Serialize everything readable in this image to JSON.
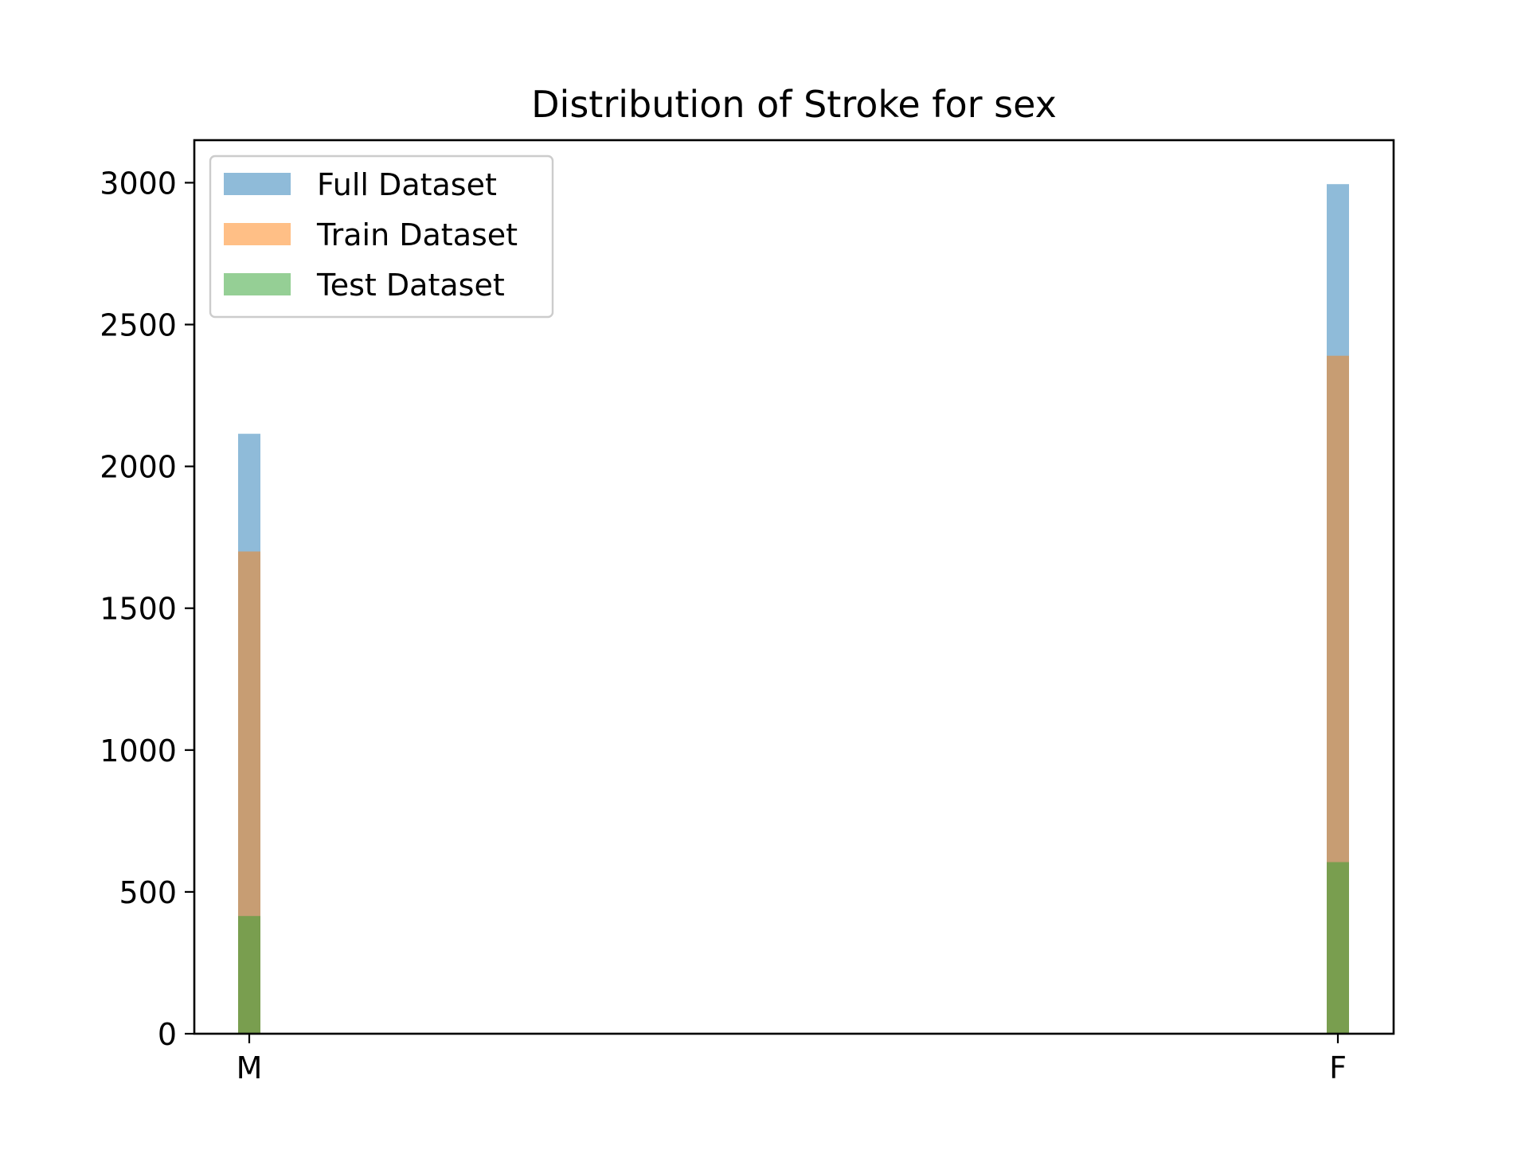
{
  "chart_data": {
    "type": "bar",
    "title": "Distribution of Stroke for sex",
    "xlabel": "",
    "ylabel": "",
    "categories": [
      "M",
      "F"
    ],
    "ylim": [
      0,
      3150
    ],
    "yticks": [
      0,
      500,
      1000,
      1500,
      2000,
      2500,
      3000
    ],
    "grid": false,
    "legend_position": "top-left",
    "series": [
      {
        "name": "Full Dataset",
        "values": [
          2115,
          2995
        ],
        "color": "#1f77b4",
        "opacity": 0.5
      },
      {
        "name": "Train Dataset",
        "values": [
          1700,
          2390
        ],
        "color": "#ff7f0e",
        "opacity": 0.5
      },
      {
        "name": "Test Dataset",
        "values": [
          415,
          605
        ],
        "color": "#2ca02c",
        "opacity": 0.5
      }
    ]
  }
}
